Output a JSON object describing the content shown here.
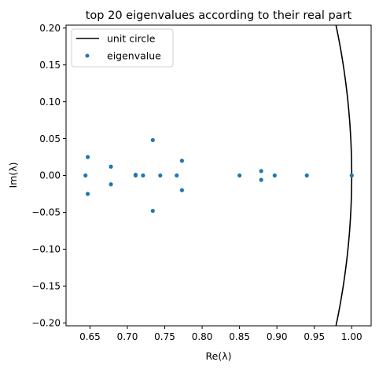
{
  "chart_data": {
    "type": "scatter",
    "title": "top 20 eigenvalues according to their real part",
    "xlabel": "Re(λ)",
    "ylabel": "Im(λ)",
    "xlim": [
      0.618,
      1.026
    ],
    "ylim": [
      -0.204,
      0.204
    ],
    "xticks": [
      0.65,
      0.7,
      0.75,
      0.8,
      0.85,
      0.9,
      0.95,
      1.0
    ],
    "xtick_labels": [
      "0.65",
      "0.70",
      "0.75",
      "0.80",
      "0.85",
      "0.90",
      "0.95",
      "1.00"
    ],
    "yticks": [
      0.2,
      0.15,
      0.1,
      0.05,
      0.0,
      -0.05,
      -0.1,
      -0.15,
      -0.2
    ],
    "ytick_labels": [
      "0.20",
      "0.15",
      "0.10",
      "0.05",
      "0.00",
      "−0.05",
      "−0.10",
      "−0.15",
      "−0.20"
    ],
    "grid": false,
    "legend_position": "top-left",
    "series": [
      {
        "name": "unit circle",
        "kind": "line",
        "color": "#000000",
        "note_shape": "circle"
      },
      {
        "name": "eigenvalue",
        "kind": "scatter",
        "color": "#1f77b4",
        "points": [
          [
            1.0,
            0.0
          ],
          [
            0.94,
            0.0
          ],
          [
            0.897,
            0.0
          ],
          [
            0.879,
            0.006
          ],
          [
            0.879,
            -0.006
          ],
          [
            0.85,
            0.0
          ],
          [
            0.773,
            0.02
          ],
          [
            0.773,
            -0.02
          ],
          [
            0.766,
            0.0
          ],
          [
            0.744,
            0.0
          ],
          [
            0.734,
            0.048
          ],
          [
            0.734,
            -0.048
          ],
          [
            0.721,
            0.0
          ],
          [
            0.711,
            0.0
          ],
          [
            0.711,
            0.001
          ],
          [
            0.678,
            0.012
          ],
          [
            0.678,
            -0.012
          ],
          [
            0.647,
            0.025
          ],
          [
            0.647,
            -0.025
          ],
          [
            0.644,
            0.0
          ]
        ]
      }
    ]
  }
}
